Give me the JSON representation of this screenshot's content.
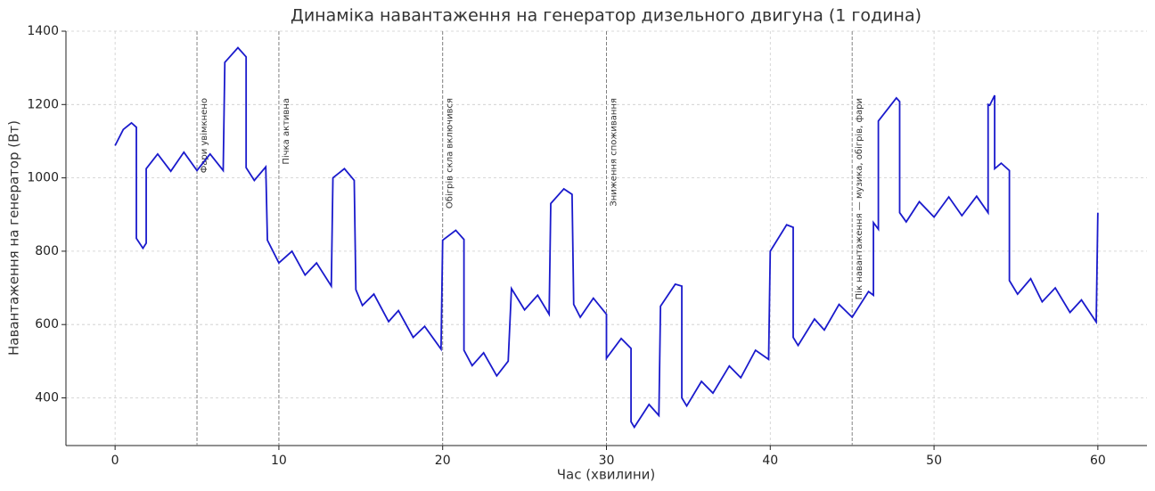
{
  "chart_data": {
    "type": "line",
    "title": "Динаміка навантаження на генератор дизельного двигуна (1 година)",
    "xlabel": "Час (хвилини)",
    "ylabel": "Навантаження на генератор (Вт)",
    "xlim": [
      -3,
      63
    ],
    "ylim": [
      270,
      1400
    ],
    "xticks": [
      0,
      10,
      20,
      30,
      40,
      50,
      60
    ],
    "yticks": [
      400,
      600,
      800,
      1000,
      1200,
      1400
    ],
    "grid": true,
    "annotations": [
      {
        "x": 5,
        "label": "Фари увімкнено"
      },
      {
        "x": 10,
        "label": "Пічка активна"
      },
      {
        "x": 20,
        "label": "Обігрів скла включився"
      },
      {
        "x": 30,
        "label": "Зниження споживання"
      },
      {
        "x": 45,
        "label": "Пік навантаження — музика, обігрів, фари"
      }
    ],
    "series": [
      {
        "name": "Навантаження",
        "color": "#1a1acc",
        "x": [
          0,
          0.5,
          1.0,
          1.3,
          1.3,
          1.7,
          1.9,
          1.9,
          2.6,
          3.4,
          4.2,
          5.0,
          5.8,
          6.6,
          6.7,
          7.5,
          8.0,
          8.0,
          8.5,
          9.2,
          9.3,
          10.0,
          10.8,
          11.6,
          12.3,
          13.2,
          13.3,
          14.0,
          14.6,
          14.7,
          15.1,
          15.8,
          16.7,
          17.3,
          18.2,
          18.9,
          19.9,
          20.0,
          20.8,
          21.3,
          21.3,
          21.8,
          22.5,
          23.3,
          24.0,
          24.2,
          25.0,
          25.8,
          26.5,
          26.6,
          27.4,
          27.9,
          28.0,
          28.4,
          29.2,
          30.0,
          30.0,
          30.9,
          31.5,
          31.5,
          31.7,
          32.6,
          33.2,
          33.3,
          34.2,
          34.6,
          34.6,
          34.9,
          35.8,
          36.5,
          37.5,
          38.2,
          39.1,
          39.9,
          40.0,
          41.0,
          41.4,
          41.4,
          41.7,
          42.7,
          43.3,
          44.2,
          45.0,
          46.0,
          46.3,
          46.3,
          46.6,
          46.6,
          47.7,
          47.9,
          47.9,
          48.3,
          49.1,
          50.0,
          50.9,
          51.7,
          52.6,
          53.3,
          53.3,
          53.4,
          53.7,
          53.7,
          54.1,
          54.6,
          54.6,
          55.1,
          55.9,
          56.6,
          57.4,
          58.3,
          59.0,
          59.9,
          60.0,
          60.0
        ],
        "values": [
          1088,
          1132,
          1150,
          1138,
          835,
          808,
          822,
          1025,
          1065,
          1018,
          1070,
          1020,
          1065,
          1020,
          1315,
          1355,
          1330,
          1028,
          993,
          1030,
          830,
          768,
          800,
          735,
          768,
          705,
          1000,
          1025,
          993,
          695,
          652,
          683,
          608,
          638,
          565,
          595,
          533,
          830,
          857,
          832,
          530,
          488,
          523,
          460,
          500,
          698,
          640,
          680,
          628,
          930,
          970,
          955,
          655,
          620,
          672,
          628,
          508,
          562,
          535,
          335,
          320,
          382,
          352,
          650,
          710,
          705,
          400,
          378,
          445,
          413,
          487,
          455,
          530,
          505,
          800,
          872,
          865,
          565,
          543,
          615,
          585,
          655,
          620,
          690,
          680,
          878,
          860,
          1155,
          1218,
          1208,
          905,
          880,
          935,
          893,
          948,
          897,
          950,
          905,
          1200,
          1198,
          1225,
          1025,
          1040,
          1020,
          720,
          683,
          725,
          662,
          700,
          633,
          667,
          607,
          905,
          898
        ]
      }
    ]
  }
}
